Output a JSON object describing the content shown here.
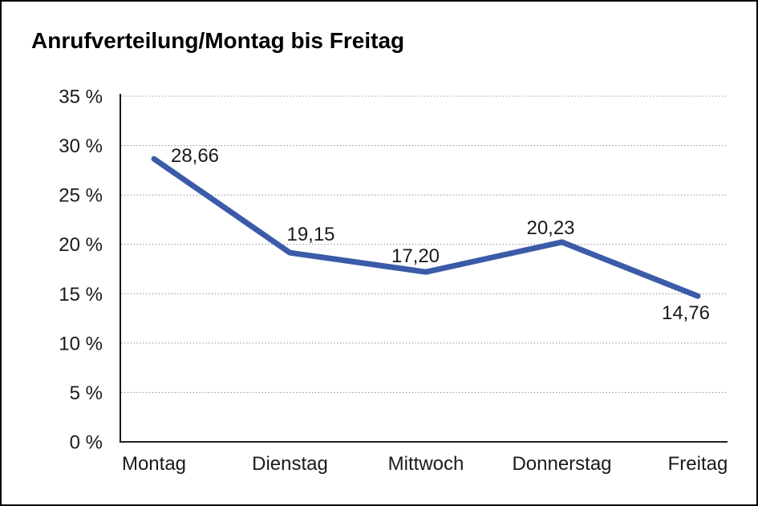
{
  "window": {
    "background": "#ffffff",
    "frame_border_color": "#000000"
  },
  "chart_data": {
    "type": "line",
    "title": "Anrufverteilung/Montag bis Freitag",
    "categories": [
      "Montag",
      "Dienstag",
      "Mittwoch",
      "Donnerstag",
      "Freitag"
    ],
    "series": [
      {
        "name": "Anrufverteilung",
        "values": [
          28.66,
          19.15,
          17.2,
          20.23,
          14.76
        ]
      }
    ],
    "data_labels": [
      "28,66",
      "19,15",
      "17,20",
      "20,23",
      "14,76"
    ],
    "y_tick_labels": [
      "0 %",
      "5 %",
      "10 %",
      "15 %",
      "20 %",
      "25 %",
      "30 %",
      "35 %"
    ],
    "y_tick_values": [
      0,
      5,
      10,
      15,
      20,
      25,
      30,
      35
    ],
    "ylim": [
      0,
      35
    ],
    "xlabel": "",
    "ylabel": "",
    "legend": "none",
    "grid": "horizontal-dotted",
    "line_color": "#3B5BA8",
    "axis_color": "#000000",
    "grid_color": "#8f8f8f",
    "text_color": "#1a1a1a"
  }
}
